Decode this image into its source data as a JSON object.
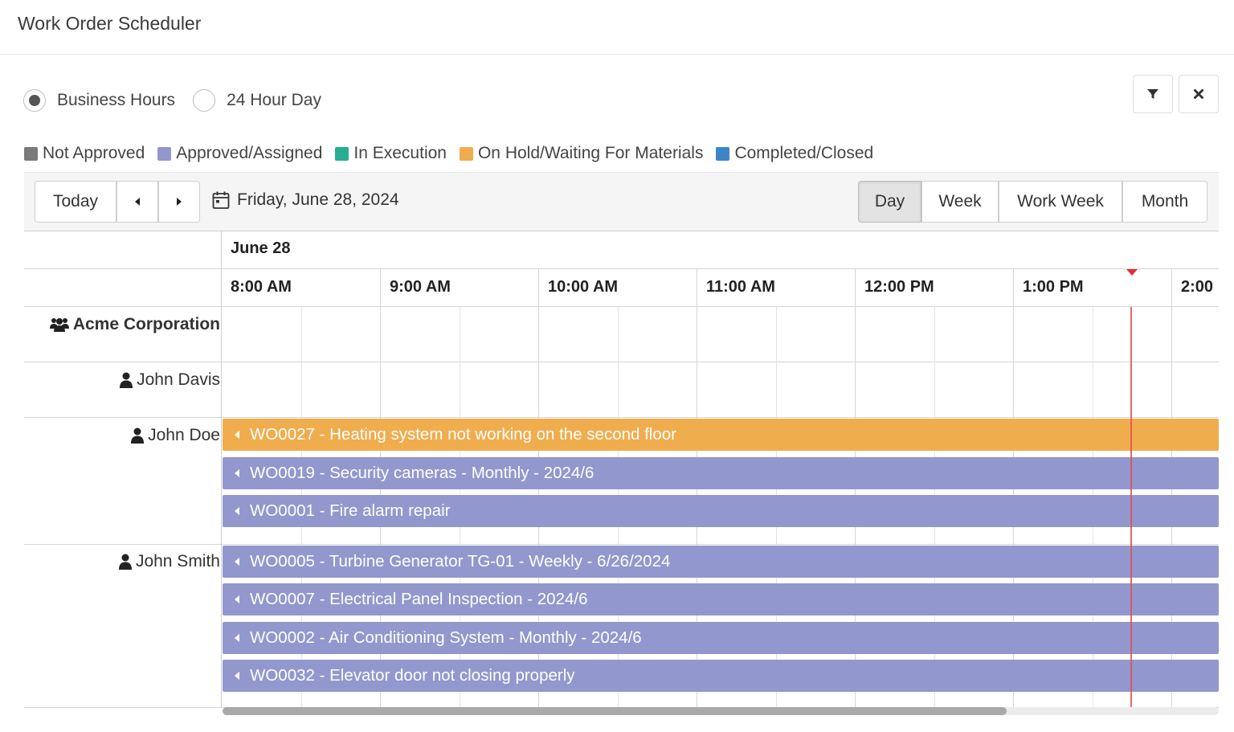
{
  "header": {
    "title": "Work Order Scheduler"
  },
  "hours_mode": {
    "options": [
      {
        "label": "Business Hours",
        "selected": true
      },
      {
        "label": "24 Hour Day",
        "selected": false
      }
    ]
  },
  "actions": {
    "filter_icon": "filter-icon",
    "close_icon": "close-icon"
  },
  "legend": [
    {
      "label": "Not Approved",
      "color": "#7a7a7a"
    },
    {
      "label": "Approved/Assigned",
      "color": "#9298cd"
    },
    {
      "label": "In Execution",
      "color": "#27ad93"
    },
    {
      "label": "On Hold/Waiting For Materials",
      "color": "#f0ad4e"
    },
    {
      "label": "Completed/Closed",
      "color": "#3d85c9"
    }
  ],
  "toolbar": {
    "today": "Today",
    "date": "Friday, June 28, 2024",
    "views": [
      "Day",
      "Week",
      "Work Week",
      "Month"
    ],
    "active_view": "Day"
  },
  "schedule": {
    "date_header": "June 28",
    "time_slots": [
      "8:00 AM",
      "9:00 AM",
      "10:00 AM",
      "11:00 AM",
      "12:00 PM",
      "1:00 PM",
      "2:00"
    ],
    "resources": [
      {
        "name": "Acme Corporation",
        "type": "group",
        "icon": "users-icon"
      },
      {
        "name": "John Davis",
        "type": "person",
        "icon": "user-icon"
      },
      {
        "name": "John Doe",
        "type": "person",
        "icon": "user-icon"
      },
      {
        "name": "John Smith",
        "type": "person",
        "icon": "user-icon"
      }
    ],
    "events": [
      {
        "title": "WO0027 - Heating system not working on the second floor",
        "resource": "John Doe",
        "status": "On Hold/Waiting For Materials",
        "color": "#f0ad4e"
      },
      {
        "title": "WO0019 - Security cameras - Monthly - 2024/6",
        "resource": "John Doe",
        "status": "Approved/Assigned",
        "color": "#9298cd"
      },
      {
        "title": "WO0001 - Fire alarm repair",
        "resource": "John Doe",
        "status": "Approved/Assigned",
        "color": "#9298cd"
      },
      {
        "title": "WO0005 - Turbine Generator TG-01 - Weekly - 6/26/2024",
        "resource": "John Smith",
        "status": "Approved/Assigned",
        "color": "#9298cd"
      },
      {
        "title": "WO0007 - Electrical Panel Inspection - 2024/6",
        "resource": "John Smith",
        "status": "Approved/Assigned",
        "color": "#9298cd"
      },
      {
        "title": "WO0002 - Air Conditioning System - Monthly - 2024/6",
        "resource": "John Smith",
        "status": "Approved/Assigned",
        "color": "#9298cd"
      },
      {
        "title": "WO0032 - Elevator door not closing properly",
        "resource": "John Smith",
        "status": "Approved/Assigned",
        "color": "#9298cd"
      }
    ],
    "current_time_marker": "now-indicator"
  }
}
